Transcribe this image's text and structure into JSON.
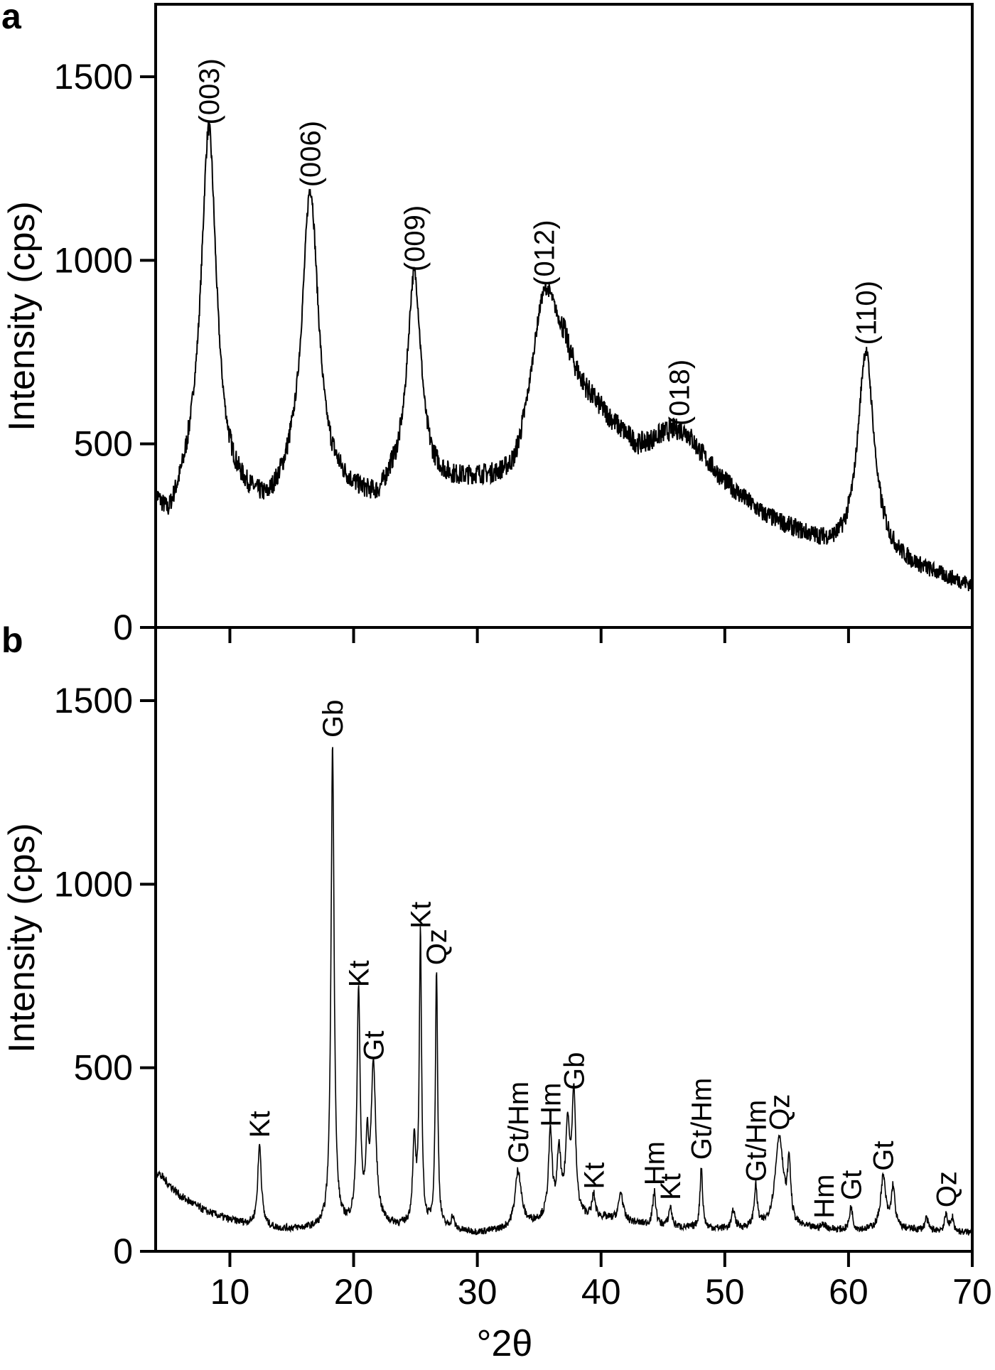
{
  "figure": {
    "panels": [
      "a",
      "b"
    ],
    "xlabel": "°2θ",
    "ylabel": "Intensity (cps)"
  },
  "chart_data": [
    {
      "type": "line",
      "panel": "a",
      "title": "",
      "xlabel": "°2θ",
      "ylabel": "Intensity (cps)",
      "xlim": [
        4,
        70
      ],
      "ylim": [
        0,
        1680
      ],
      "xticks": [
        10,
        20,
        30,
        40,
        50,
        60,
        70
      ],
      "yticks": [
        0,
        500,
        1000,
        1500
      ],
      "grid": false,
      "legend": null,
      "baseline": [
        [
          4,
          330
        ],
        [
          5,
          270
        ],
        [
          7,
          380
        ],
        [
          11,
          330
        ],
        [
          13,
          300
        ],
        [
          15,
          360
        ],
        [
          19,
          350
        ],
        [
          22,
          320
        ],
        [
          23,
          360
        ],
        [
          26,
          360
        ],
        [
          27,
          370
        ],
        [
          30,
          380
        ],
        [
          33,
          360
        ],
        [
          34,
          420
        ],
        [
          37,
          640
        ],
        [
          40,
          560
        ],
        [
          43,
          470
        ],
        [
          45,
          480
        ],
        [
          47,
          470
        ],
        [
          50,
          380
        ],
        [
          53,
          300
        ],
        [
          56,
          250
        ],
        [
          59,
          200
        ],
        [
          60,
          190
        ],
        [
          63,
          180
        ],
        [
          66,
          150
        ],
        [
          70,
          110
        ]
      ],
      "peaks": [
        {
          "label": "(003)",
          "x": 8.3,
          "y": 1350,
          "fwhm": 1.5
        },
        {
          "label": "(006)",
          "x": 16.5,
          "y": 1180,
          "fwhm": 1.6
        },
        {
          "label": "(009)",
          "x": 24.9,
          "y": 950,
          "fwhm": 1.4
        },
        {
          "label": "(012)",
          "x": 35.4,
          "y": 910,
          "fwhm": 2.8
        },
        {
          "label": "(018)",
          "x": 46.3,
          "y": 530,
          "fwhm": 4.0
        },
        {
          "label": "(110)",
          "x": 61.4,
          "y": 750,
          "fwhm": 1.6
        }
      ]
    },
    {
      "type": "line",
      "panel": "b",
      "title": "",
      "xlabel": "°2θ",
      "ylabel": "Intensity (cps)",
      "xlim": [
        4,
        70
      ],
      "ylim": [
        0,
        1680
      ],
      "xticks": [
        10,
        20,
        30,
        40,
        50,
        60,
        70
      ],
      "yticks": [
        0,
        500,
        1000,
        1500
      ],
      "grid": false,
      "legend": null,
      "baseline": [
        [
          4,
          220
        ],
        [
          6,
          150
        ],
        [
          8,
          110
        ],
        [
          10,
          85
        ],
        [
          12,
          70
        ],
        [
          14,
          60
        ],
        [
          18,
          60
        ],
        [
          22,
          70
        ],
        [
          26,
          60
        ],
        [
          30,
          50
        ],
        [
          33,
          60
        ],
        [
          36,
          90
        ],
        [
          40,
          90
        ],
        [
          44,
          70
        ],
        [
          48,
          60
        ],
        [
          52,
          60
        ],
        [
          56,
          60
        ],
        [
          60,
          55
        ],
        [
          64,
          60
        ],
        [
          70,
          50
        ]
      ],
      "peaks": [
        {
          "label": "Kt",
          "x": 12.4,
          "y": 290,
          "fwhm": 0.35
        },
        {
          "label": "Gb",
          "x": 18.3,
          "y": 1380,
          "fwhm": 0.3
        },
        {
          "label": "Kt",
          "x": 20.4,
          "y": 700,
          "fwhm": 0.3
        },
        {
          "label": "",
          "x": 21.1,
          "y": 260,
          "fwhm": 0.25
        },
        {
          "label": "Gt",
          "x": 21.6,
          "y": 500,
          "fwhm": 0.45
        },
        {
          "label": "",
          "x": 24.9,
          "y": 290,
          "fwhm": 0.3
        },
        {
          "label": "Kt",
          "x": 25.4,
          "y": 860,
          "fwhm": 0.22
        },
        {
          "label": "Qz",
          "x": 26.7,
          "y": 760,
          "fwhm": 0.22
        },
        {
          "label": "",
          "x": 28.0,
          "y": 90,
          "fwhm": 0.3
        },
        {
          "label": "Gt/Hm",
          "x": 33.3,
          "y": 220,
          "fwhm": 0.6
        },
        {
          "label": "Hm",
          "x": 35.9,
          "y": 320,
          "fwhm": 0.35
        },
        {
          "label": "",
          "x": 36.6,
          "y": 260,
          "fwhm": 0.35
        },
        {
          "label": "",
          "x": 37.3,
          "y": 330,
          "fwhm": 0.4
        },
        {
          "label": "Gb",
          "x": 37.8,
          "y": 420,
          "fwhm": 0.35
        },
        {
          "label": "Kt",
          "x": 39.4,
          "y": 150,
          "fwhm": 0.3
        },
        {
          "label": "",
          "x": 41.6,
          "y": 160,
          "fwhm": 0.4
        },
        {
          "label": "Hm",
          "x": 44.3,
          "y": 160,
          "fwhm": 0.3
        },
        {
          "label": "Kt",
          "x": 45.6,
          "y": 120,
          "fwhm": 0.3
        },
        {
          "label": "Gt/Hm",
          "x": 48.1,
          "y": 230,
          "fwhm": 0.25
        },
        {
          "label": "",
          "x": 50.7,
          "y": 110,
          "fwhm": 0.3
        },
        {
          "label": "Gt/Hm",
          "x": 52.5,
          "y": 170,
          "fwhm": 0.3
        },
        {
          "label": "Qz",
          "x": 54.4,
          "y": 310,
          "fwhm": 0.8
        },
        {
          "label": "",
          "x": 55.2,
          "y": 220,
          "fwhm": 0.3
        },
        {
          "label": "Hm",
          "x": 58.0,
          "y": 70,
          "fwhm": 0.5
        },
        {
          "label": "Gt",
          "x": 60.2,
          "y": 120,
          "fwhm": 0.3
        },
        {
          "label": "Gt",
          "x": 62.8,
          "y": 200,
          "fwhm": 0.5
        },
        {
          "label": "",
          "x": 63.6,
          "y": 170,
          "fwhm": 0.35
        },
        {
          "label": "",
          "x": 66.3,
          "y": 90,
          "fwhm": 0.3
        },
        {
          "label": "Qz",
          "x": 67.9,
          "y": 100,
          "fwhm": 0.3
        },
        {
          "label": "",
          "x": 68.4,
          "y": 90,
          "fwhm": 0.25
        }
      ]
    }
  ]
}
